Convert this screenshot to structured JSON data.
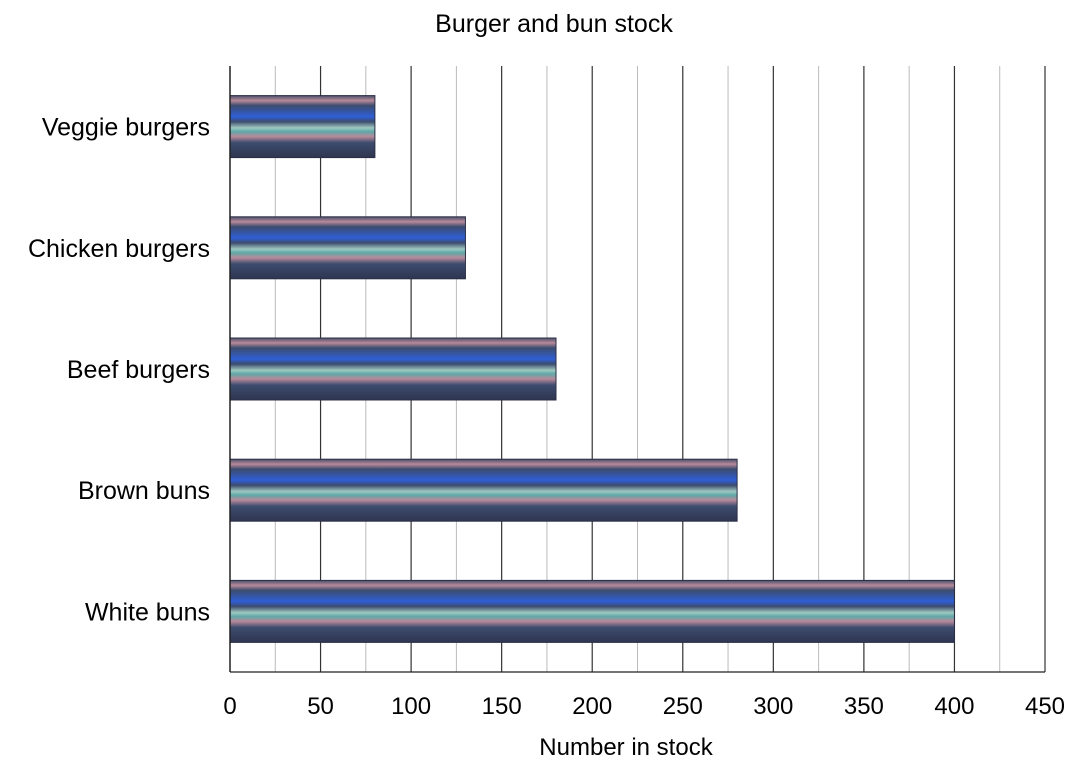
{
  "chart_data": {
    "type": "bar",
    "orientation": "horizontal",
    "title": "Burger and bun stock",
    "xlabel": "Number in stock",
    "ylabel": "",
    "categories": [
      "Veggie burgers",
      "Chicken burgers",
      "Beef burgers",
      "Brown buns",
      "White buns"
    ],
    "values": [
      80,
      130,
      180,
      280,
      400
    ],
    "xlim": [
      0,
      450
    ],
    "ticks": [
      "0",
      "50",
      "100",
      "150",
      "200",
      "250",
      "300",
      "350",
      "400",
      "450"
    ],
    "grid": true,
    "legend": "none",
    "colors": {
      "bar": "#3d4c6e",
      "bar_stripe_blue": "#2f5fd6",
      "bar_stripe_pink": "#b88a9a",
      "bar_stripe_teal": "#5fa8a8",
      "grid_major": "#333333",
      "grid_minor": "#bbbbbb"
    }
  }
}
